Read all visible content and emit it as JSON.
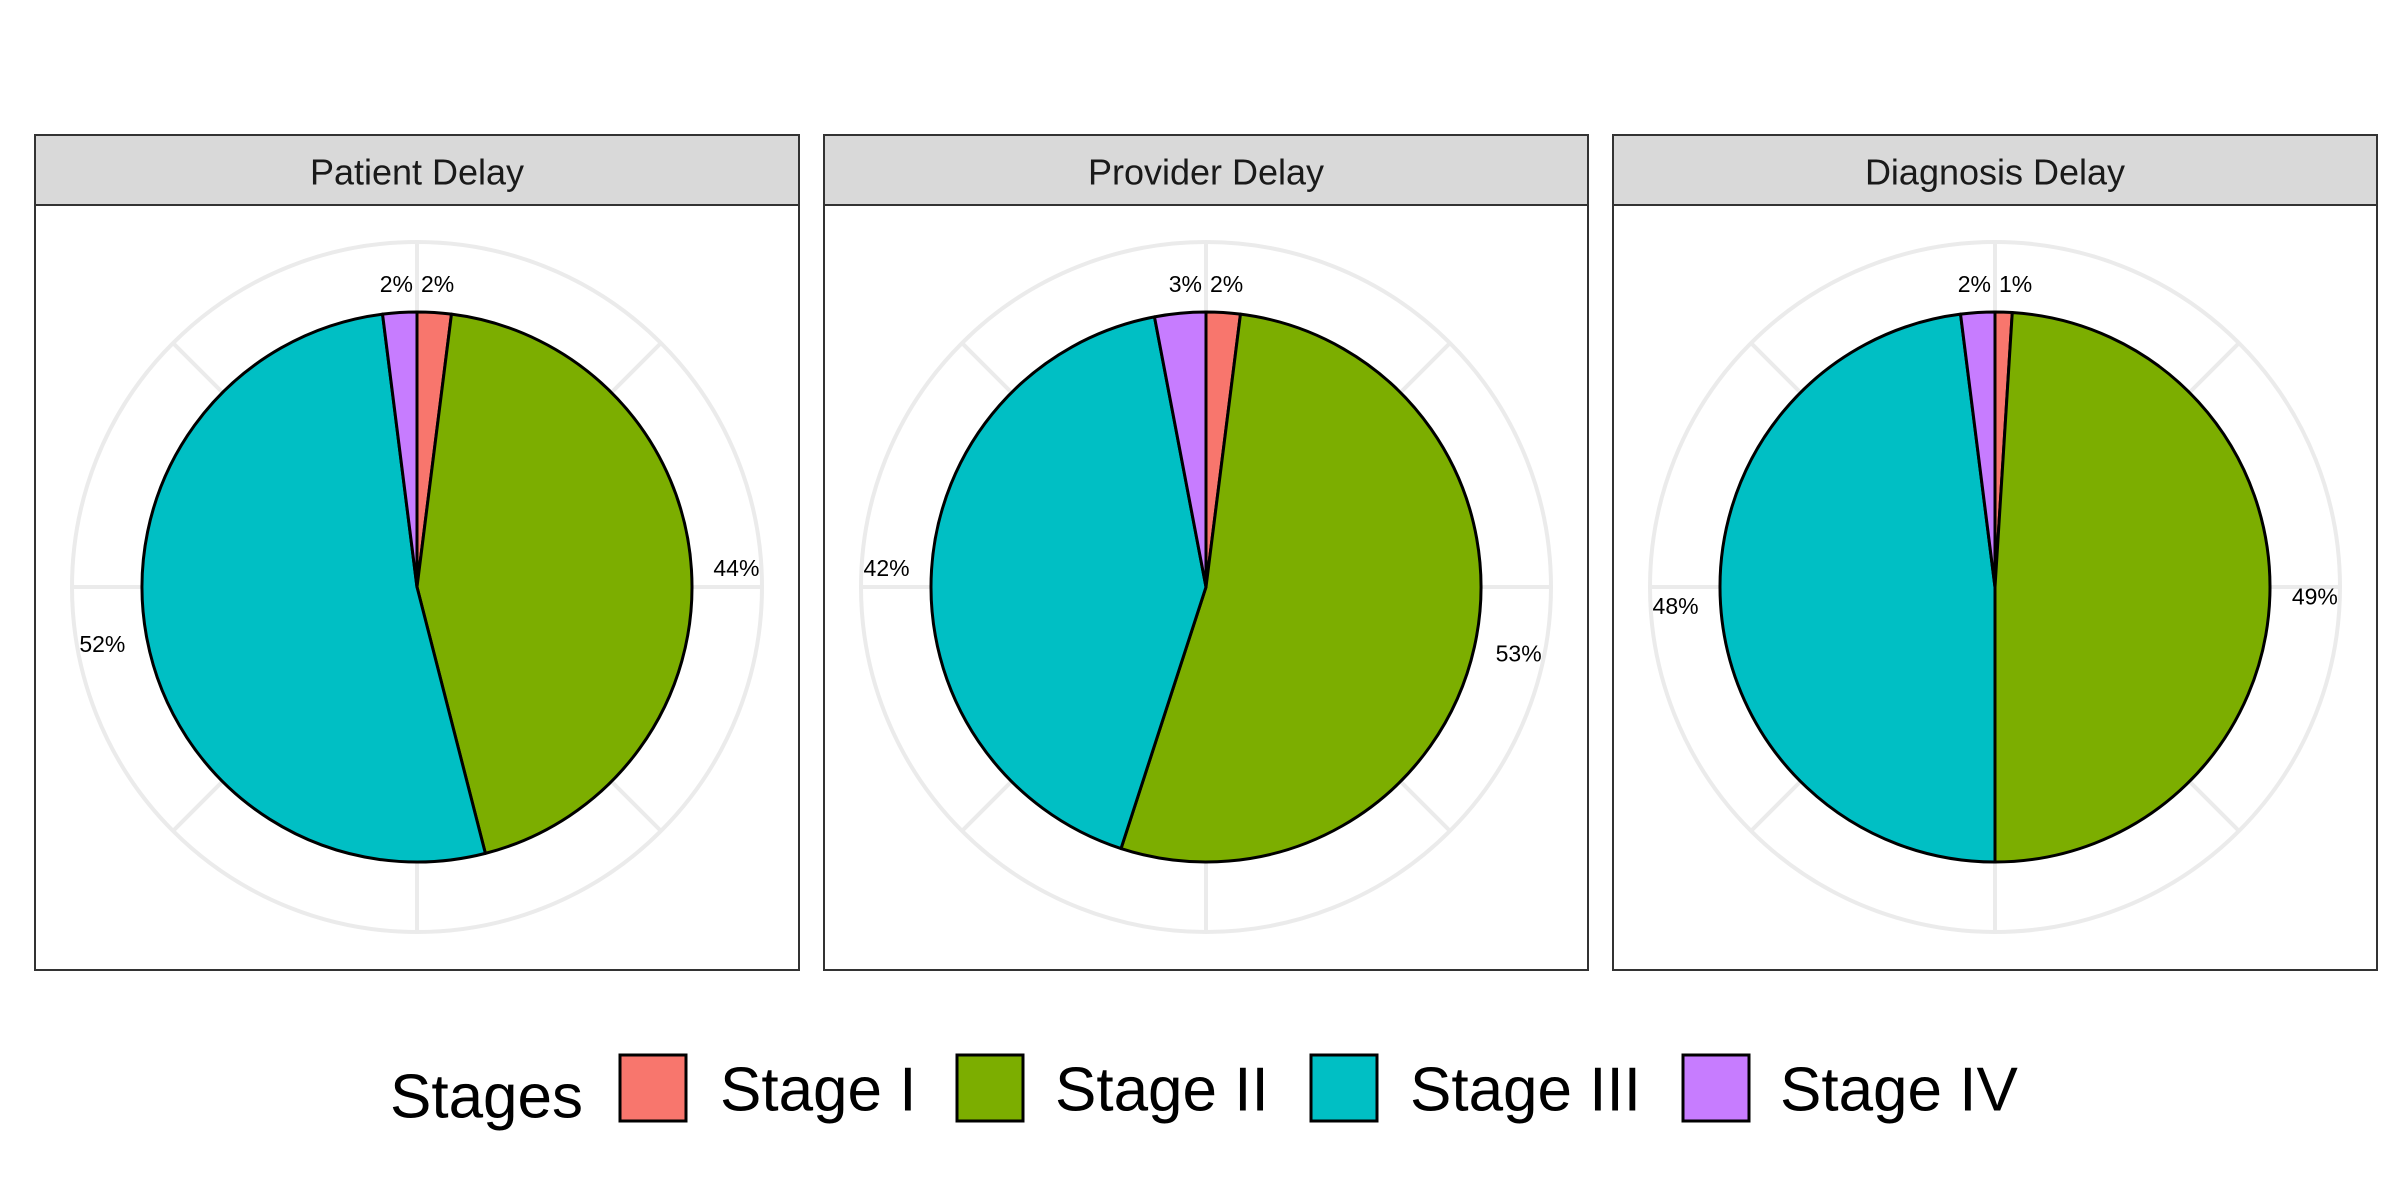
{
  "chart_data": {
    "type": "pie",
    "legend": {
      "title": "Stages",
      "placement": "bottom"
    },
    "categories": [
      "Stage I",
      "Stage II",
      "Stage III",
      "Stage IV"
    ],
    "colors": [
      "#F8766D",
      "#7CAE00",
      "#00BFC4",
      "#C77CFF"
    ],
    "panels": [
      {
        "title": "Patient Delay",
        "values": [
          2,
          44,
          52,
          2
        ],
        "labels": [
          "2%",
          "44%",
          "52%",
          "2%"
        ]
      },
      {
        "title": "Provider Delay",
        "values": [
          2,
          53,
          42,
          3
        ],
        "labels": [
          "2%",
          "53%",
          "42%",
          "3%"
        ]
      },
      {
        "title": "Diagnosis Delay",
        "values": [
          1,
          49,
          48,
          2
        ],
        "labels": [
          "1%",
          "49%",
          "48%",
          "2%"
        ]
      }
    ]
  }
}
